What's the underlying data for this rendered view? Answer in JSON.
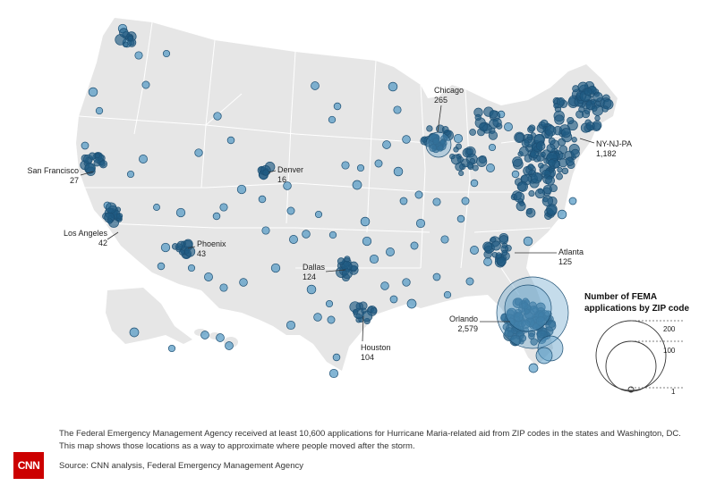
{
  "cities": [
    {
      "key": "chicago",
      "name": "Chicago",
      "value": "265"
    },
    {
      "key": "nynjpa",
      "name": "NY-NJ-PA",
      "value": "1,182"
    },
    {
      "key": "sanfrancisco",
      "name": "San Francisco",
      "value": "27"
    },
    {
      "key": "denver",
      "name": "Denver",
      "value": "16"
    },
    {
      "key": "losangeles",
      "name": "Los Angeles",
      "value": "42"
    },
    {
      "key": "phoenix",
      "name": "Phoenix",
      "value": "43"
    },
    {
      "key": "atlanta",
      "name": "Atlanta",
      "value": "125"
    },
    {
      "key": "dallas",
      "name": "Dallas",
      "value": "124"
    },
    {
      "key": "orlando",
      "name": "Orlando",
      "value": "2,579"
    },
    {
      "key": "houston",
      "name": "Houston",
      "value": "104"
    }
  ],
  "legend": {
    "title": "Number of FEMA applications by ZIP code",
    "values": [
      "200",
      "100",
      "1"
    ]
  },
  "caption": "The Federal Emergency Management Agency received at least 10,600 applications for Hurricane Maria-related aid from ZIP codes in the states and Washington, DC. This map shows those locations as a way to approximate where people moved after the storm.",
  "source": "Source: CNN analysis, Federal Emergency Management Agency",
  "logo": "CNN",
  "colors": {
    "land": "#e6e6e6",
    "state_border": "#ffffff",
    "bubble_fill": "#5a9cc6",
    "bubble_stroke": "#1d4f73",
    "bubble_dense": "#1f5a82"
  }
}
